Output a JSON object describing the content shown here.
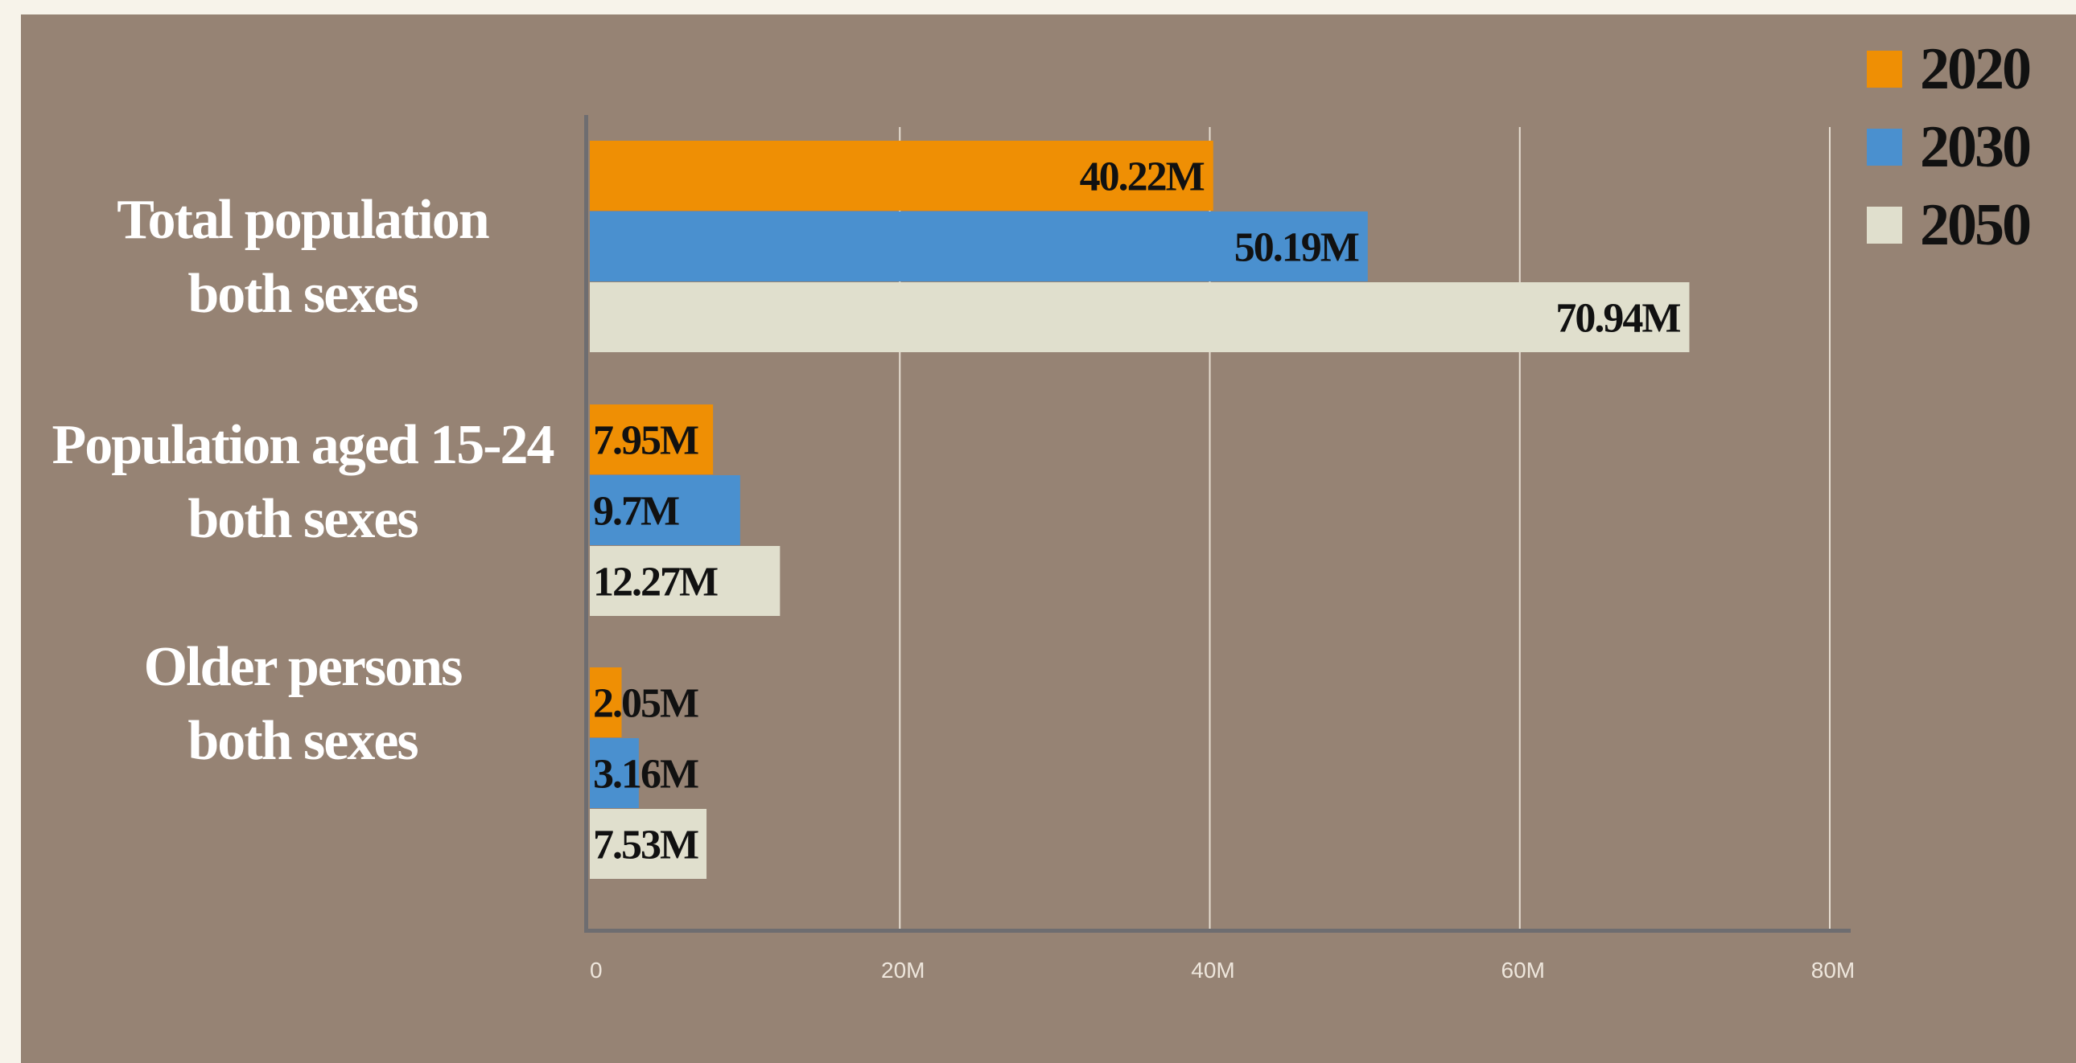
{
  "chart_data": {
    "type": "bar",
    "orientation": "horizontal",
    "categories": [
      [
        "Total population",
        "both sexes"
      ],
      [
        "Population aged 15-24",
        "both sexes"
      ],
      [
        "Older persons",
        "both sexes"
      ]
    ],
    "series": [
      {
        "name": "2020",
        "color": "#ef8f04",
        "values": [
          40.22,
          7.95,
          2.05
        ],
        "labels": [
          "40.22M",
          "7.95M",
          "2.05M"
        ]
      },
      {
        "name": "2030",
        "color": "#4a90cf",
        "values": [
          50.19,
          9.7,
          3.16
        ],
        "labels": [
          "50.19M",
          "9.7M",
          "3.16M"
        ]
      },
      {
        "name": "2050",
        "color": "#e0dfcd",
        "values": [
          70.94,
          12.27,
          7.53
        ],
        "labels": [
          "70.94M",
          "12.27M",
          "7.53M"
        ]
      }
    ],
    "xlim": [
      0,
      80
    ],
    "ticks": [
      0,
      20,
      40,
      60,
      80
    ],
    "tick_labels": [
      "0",
      "20M",
      "40M",
      "60M",
      "80M"
    ],
    "grid": true,
    "legend_position": "top-right"
  }
}
